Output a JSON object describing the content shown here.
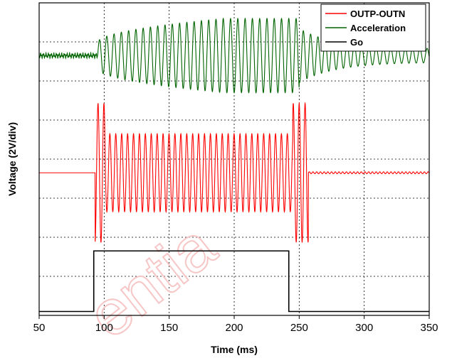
{
  "chart_data": {
    "type": "line",
    "xlabel": "Time (ms)",
    "ylabel": "Voltage (2V/div)",
    "xlim": [
      50,
      350
    ],
    "x_ticks": [
      "50",
      "100",
      "150",
      "200",
      "250",
      "300",
      "350"
    ],
    "y_divisions": 8,
    "grid": true,
    "legend_position": "top-right",
    "watermark_text": "entia",
    "series": [
      {
        "name": "OUTP-OUTN",
        "color": "#ff0000",
        "baseline_div": 3.65,
        "burst_start_ms": 93,
        "burst_end_ms": 257,
        "main_period_ms": 4.55,
        "main_amplitude_div": 1.0,
        "edge_amplitude_div": 1.78
      },
      {
        "name": "Acceleration",
        "color": "#006400",
        "baseline_div": 6.65,
        "osc_start_ms": 95,
        "osc_end_ms": 250,
        "period_ms": 5.6,
        "peak_amplitude_div": 0.95,
        "decay_end_ms": 350
      },
      {
        "name": "Go",
        "color": "#000000",
        "low_div": 0.1,
        "high_div": 1.65,
        "high_start_ms": 92,
        "high_end_ms": 242
      }
    ]
  }
}
